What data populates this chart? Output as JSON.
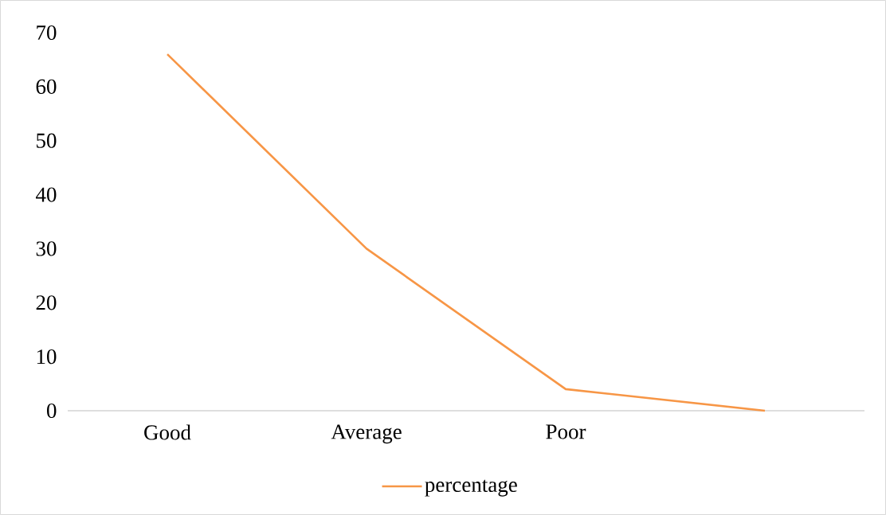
{
  "chart_data": {
    "type": "line",
    "categories": [
      "Good",
      "Average",
      "Poor",
      null
    ],
    "series": [
      {
        "name": "percentage",
        "color": "#f79646",
        "values": [
          66,
          30,
          4,
          0
        ]
      }
    ],
    "ylim": [
      0,
      70
    ],
    "yticks": [
      0,
      10,
      20,
      30,
      40,
      50,
      60,
      70
    ],
    "legend": "bottom"
  }
}
